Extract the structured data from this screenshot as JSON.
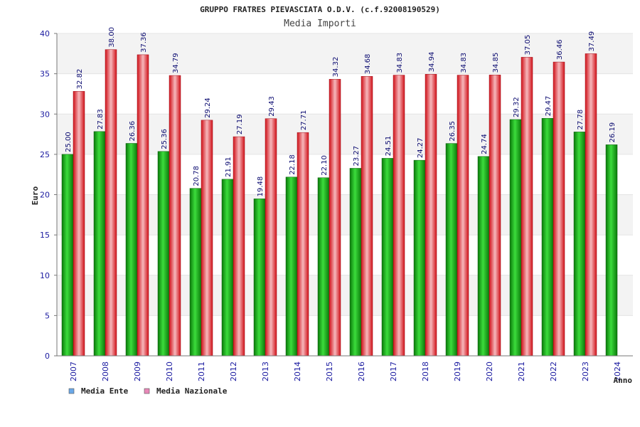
{
  "chart_data": {
    "type": "bar",
    "title": "GRUPPO FRATRES PIEVASCIATA O.D.V. (c.f.92008190529)",
    "subtitle": "Media Importi",
    "xlabel": "Anno",
    "ylabel": "Euro",
    "ylim": [
      0,
      40
    ],
    "yticks": [
      0,
      5,
      10,
      15,
      20,
      25,
      30,
      35,
      40
    ],
    "grid": true,
    "legend_position": "bottom-left",
    "categories": [
      "2007",
      "2008",
      "2009",
      "2010",
      "2011",
      "2012",
      "2013",
      "2014",
      "2015",
      "2016",
      "2017",
      "2018",
      "2019",
      "2020",
      "2021",
      "2022",
      "2023",
      "2024"
    ],
    "series": [
      {
        "name": "Media Ente",
        "color": "#1aa01a",
        "values": [
          25.0,
          27.83,
          26.36,
          25.36,
          20.78,
          21.91,
          19.48,
          22.18,
          22.1,
          23.27,
          24.51,
          24.27,
          26.35,
          24.74,
          29.32,
          29.47,
          27.78,
          26.19
        ],
        "labels": [
          "25.00",
          "27.83",
          "26.36",
          "25.36",
          "20.78",
          "21.91",
          "19.48",
          "22.18",
          "22.10",
          "23.27",
          "24.51",
          "24.27",
          "26.35",
          "24.74",
          "29.32",
          "29.47",
          "27.78",
          "26.19"
        ]
      },
      {
        "name": "Media Nazionale",
        "color": "#e8242a",
        "values": [
          32.82,
          38.0,
          37.36,
          34.79,
          29.24,
          27.19,
          29.43,
          27.71,
          34.32,
          34.68,
          34.83,
          34.94,
          34.83,
          34.85,
          37.05,
          36.46,
          37.49,
          null
        ],
        "labels": [
          "32.82",
          "38.00",
          "37.36",
          "34.79",
          "29.24",
          "27.19",
          "29.43",
          "27.71",
          "34.32",
          "34.68",
          "34.83",
          "34.94",
          "34.83",
          "34.85",
          "37.05",
          "36.46",
          "37.49",
          ""
        ]
      }
    ],
    "legend": [
      {
        "label": "Media Ente",
        "swatch": "#6aa8e8"
      },
      {
        "label": "Media Nazionale",
        "swatch": "#e888b8"
      }
    ]
  }
}
